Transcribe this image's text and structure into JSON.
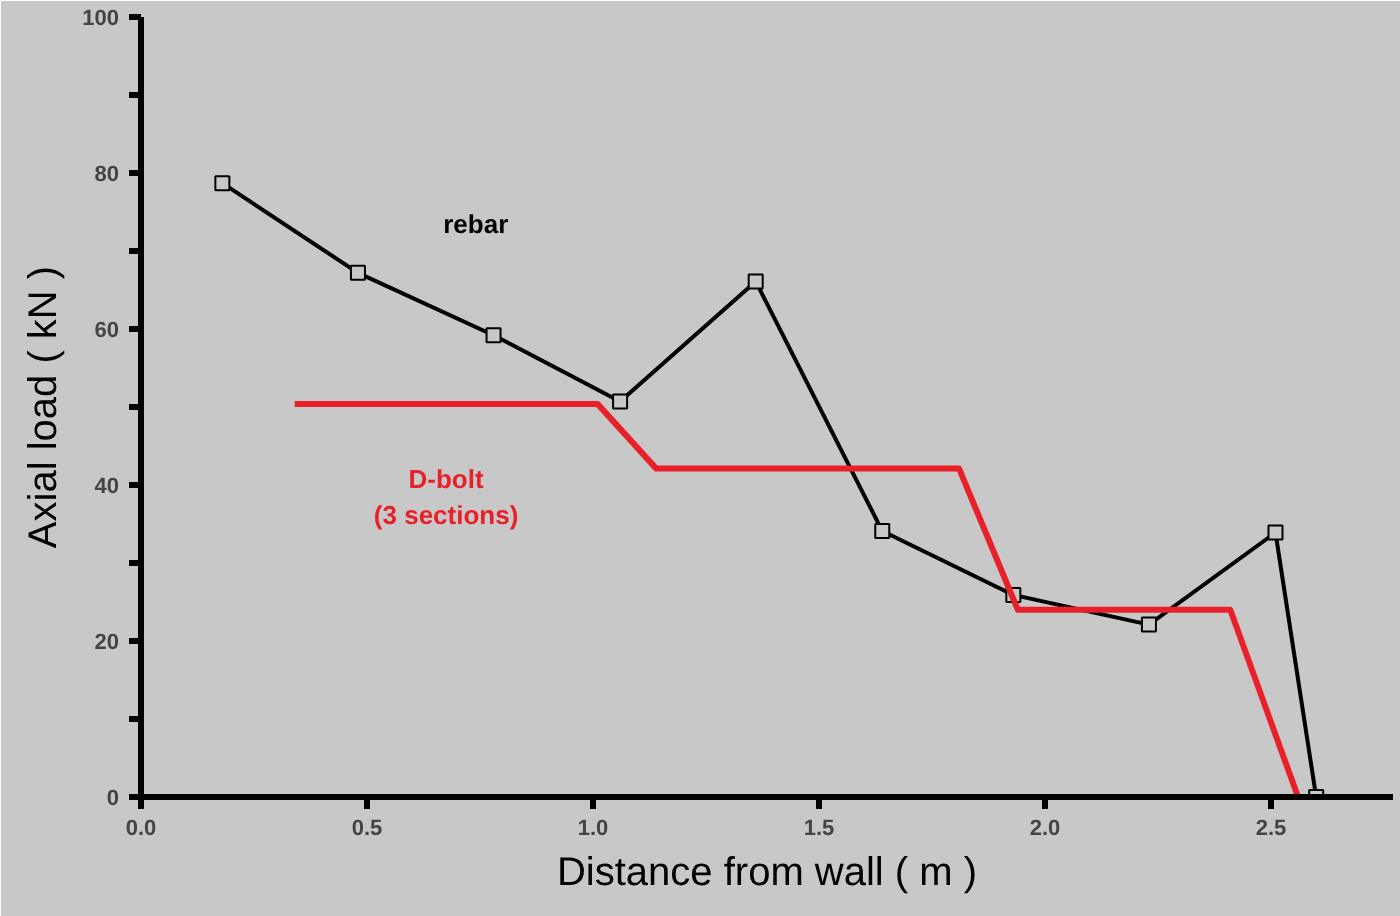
{
  "chart_data": {
    "type": "line",
    "xlabel": "Distance from wall ( m )",
    "ylabel": "Axial load ( kN )",
    "xlim": [
      0,
      2.77
    ],
    "ylim": [
      0,
      100
    ],
    "xticks": [
      {
        "value": 0,
        "label": "0.0"
      },
      0.5,
      {
        "value": 1,
        "label": "1.0"
      },
      1.5,
      {
        "value": 2,
        "label": "2.0"
      },
      2.5
    ],
    "yticks": [
      0,
      {
        "value": 10,
        "label": null
      },
      20,
      {
        "value": 30,
        "label": null
      },
      40,
      {
        "value": 50,
        "label": null
      },
      60,
      {
        "value": 70,
        "label": null
      },
      80,
      {
        "value": 90,
        "label": null
      },
      100
    ],
    "grid": false,
    "series": [
      {
        "name": "rebar",
        "color": "#000000",
        "marker": "square",
        "x": [
          0.18,
          0.48,
          0.78,
          1.06,
          1.36,
          1.64,
          1.93,
          2.23,
          2.51,
          2.6
        ],
        "values": [
          78.7,
          67.2,
          59.2,
          50.7,
          66.1,
          34.1,
          25.9,
          22.1,
          33.9,
          0
        ]
      },
      {
        "name": "D-bolt\n(3 sections)",
        "color": "#e8202a",
        "marker": "none",
        "x": [
          0.34,
          1.01,
          1.14,
          1.81,
          1.94,
          2.41,
          2.56
        ],
        "values": [
          50.4,
          50.4,
          42.1,
          42.1,
          24,
          24,
          0
        ]
      }
    ]
  }
}
